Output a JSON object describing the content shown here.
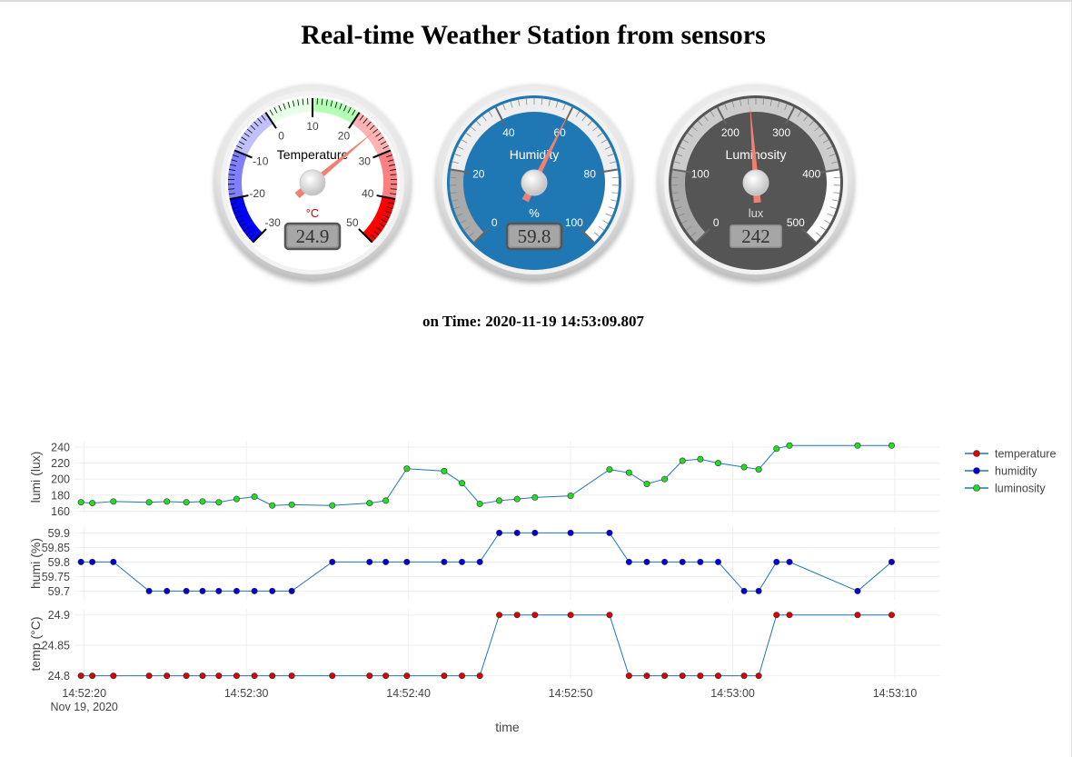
{
  "page": {
    "title": "Real-time Weather Station from sensors",
    "time_prefix": "on Time:",
    "timestamp": "2020-11-19 14:53:09.807"
  },
  "gauges": [
    {
      "id": "temperature",
      "title": "Temperature",
      "units": "°C",
      "value": 24.9,
      "display": "24.9",
      "min": -30,
      "max": 50,
      "ticks": [
        "-30",
        "-20",
        "-10",
        "0",
        "10",
        "20",
        "30",
        "40",
        "50"
      ],
      "bands": [
        {
          "from": -30,
          "to": -20,
          "color": "#0000ff"
        },
        {
          "from": -20,
          "to": -10,
          "color": "#8080ff"
        },
        {
          "from": -10,
          "to": 0,
          "color": "#c0c0ff"
        },
        {
          "from": 0,
          "to": 10,
          "color": "#e6ffe6"
        },
        {
          "from": 10,
          "to": 20,
          "color": "#b3ffb3"
        },
        {
          "from": 20,
          "to": 30,
          "color": "#ffb3b3"
        },
        {
          "from": 30,
          "to": 40,
          "color": "#ff8080"
        },
        {
          "from": 40,
          "to": 50,
          "color": "#ff0000"
        }
      ],
      "plate": "#ffffff",
      "title_color": "#000000",
      "units_color": "#cc0000",
      "number_color": "#444444"
    },
    {
      "id": "humidity",
      "title": "Humidity",
      "units": "%",
      "value": 59.8,
      "display": "59.8",
      "min": 0,
      "max": 100,
      "ticks": [
        "0",
        "20",
        "40",
        "60",
        "80",
        "100"
      ],
      "bands": [
        {
          "from": 0,
          "to": 20,
          "color": "#aaaaaa"
        },
        {
          "from": 20,
          "to": 80,
          "color": "#eeeeee"
        },
        {
          "from": 80,
          "to": 100,
          "color": "#ffffff"
        }
      ],
      "plate": "#1f78b4",
      "title_color": "#ffffff",
      "units_color": "#ffffff",
      "number_color": "#ffffff"
    },
    {
      "id": "luminosity",
      "title": "Luminosity",
      "units": "lux",
      "value": 242,
      "display": "242",
      "min": 0,
      "max": 500,
      "ticks": [
        "0",
        "100",
        "200",
        "300",
        "400",
        "500"
      ],
      "bands": [
        {
          "from": 0,
          "to": 100,
          "color": "#aaaaaa"
        },
        {
          "from": 100,
          "to": 400,
          "color": "#cccccc"
        },
        {
          "from": 400,
          "to": 500,
          "color": "#ffffff"
        }
      ],
      "plate": "#555555",
      "title_color": "#ffffff",
      "units_color": "#dddddd",
      "number_color": "#ffffff"
    }
  ],
  "colors": {
    "line": "#1f77b4",
    "temperature": "#dd0000",
    "humidity": "#0000dd",
    "luminosity": "#22dd22",
    "grid": "#eeeeee",
    "needle": "#f08070"
  },
  "chart_data": {
    "type": "line",
    "xlabel": "time",
    "x_start": "14:52:19.8",
    "x_ticks": [
      "14:52:20",
      "14:52:30",
      "14:52:40",
      "14:52:50",
      "14:53:00",
      "14:53:10"
    ],
    "x_date_label": "Nov 19, 2020",
    "xlim": [
      "14:52:19.4",
      "14:53:12.8"
    ],
    "grid": true,
    "legend_position": "top-right",
    "x": [
      "14:52:19.8",
      "14:52:20.5",
      "14:52:21.8",
      "14:52:24.0",
      "14:52:25.1",
      "14:52:26.3",
      "14:52:27.3",
      "14:52:28.3",
      "14:52:29.4",
      "14:52:30.5",
      "14:52:31.6",
      "14:52:32.8",
      "14:52:35.3",
      "14:52:37.6",
      "14:52:38.6",
      "14:52:39.9",
      "14:52:42.2",
      "14:52:43.3",
      "14:52:44.4",
      "14:52:45.6",
      "14:52:46.7",
      "14:52:47.8",
      "14:52:50.0",
      "14:52:52.4",
      "14:52:53.6",
      "14:52:54.7",
      "14:52:55.8",
      "14:52:56.9",
      "14:52:58.0",
      "14:52:59.1",
      "14:53:00.7",
      "14:53:01.6",
      "14:53:02.7",
      "14:53:03.5",
      "14:53:07.7",
      "14:53:09.8"
    ],
    "series": [
      {
        "name": "luminosity",
        "ylabel": "lumi (lux)",
        "ylim": [
          157,
          248
        ],
        "yticks": [
          "160",
          "180",
          "200",
          "220",
          "240"
        ],
        "values": [
          171,
          170,
          172,
          171,
          172,
          171,
          172,
          171,
          175,
          178,
          167,
          168,
          167,
          170,
          173,
          213,
          210,
          195,
          169,
          173,
          175,
          177,
          179,
          212,
          208,
          194,
          200,
          223,
          225,
          220,
          215,
          212,
          238,
          242,
          242,
          242
        ]
      },
      {
        "name": "humidity",
        "ylabel": "humi (%)",
        "ylim": [
          59.67,
          59.92
        ],
        "yticks": [
          "59.7",
          "59.75",
          "59.8",
          "59.85",
          "59.9"
        ],
        "values": [
          59.8,
          59.8,
          59.8,
          59.7,
          59.7,
          59.7,
          59.7,
          59.7,
          59.7,
          59.7,
          59.7,
          59.7,
          59.8,
          59.8,
          59.8,
          59.8,
          59.8,
          59.8,
          59.8,
          59.9,
          59.9,
          59.9,
          59.9,
          59.9,
          59.8,
          59.8,
          59.8,
          59.8,
          59.8,
          59.8,
          59.7,
          59.7,
          59.8,
          59.8,
          59.7,
          59.8
        ]
      },
      {
        "name": "temperature",
        "ylabel": "temp (°C)",
        "ylim": [
          24.795,
          24.91
        ],
        "yticks": [
          "24.8",
          "24.85",
          "24.9"
        ],
        "values": [
          24.8,
          24.8,
          24.8,
          24.8,
          24.8,
          24.8,
          24.8,
          24.8,
          24.8,
          24.8,
          24.8,
          24.8,
          24.8,
          24.8,
          24.8,
          24.8,
          24.8,
          24.8,
          24.8,
          24.9,
          24.9,
          24.9,
          24.9,
          24.9,
          24.8,
          24.8,
          24.8,
          24.8,
          24.8,
          24.8,
          24.8,
          24.8,
          24.9,
          24.9,
          24.9,
          24.9
        ]
      }
    ]
  }
}
